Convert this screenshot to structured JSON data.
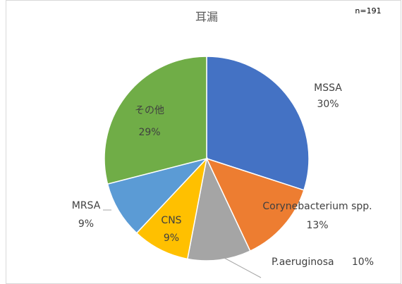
{
  "chart_data": {
    "type": "pie",
    "title": "耳漏",
    "annotation": "n=191",
    "categories": [
      "MSSA",
      "Corynebacterium spp.",
      "P.aeruginosa",
      "CNS",
      "MRSA",
      "その他"
    ],
    "values": [
      30,
      13,
      10,
      9,
      9,
      29
    ],
    "value_labels": [
      "30%",
      "13%",
      "10%",
      "9%",
      "9%",
      "29%"
    ],
    "colors": [
      "#4472c4",
      "#ed7d31",
      "#a5a5a5",
      "#ffc000",
      "#5b9bd5",
      "#70ad47"
    ]
  }
}
